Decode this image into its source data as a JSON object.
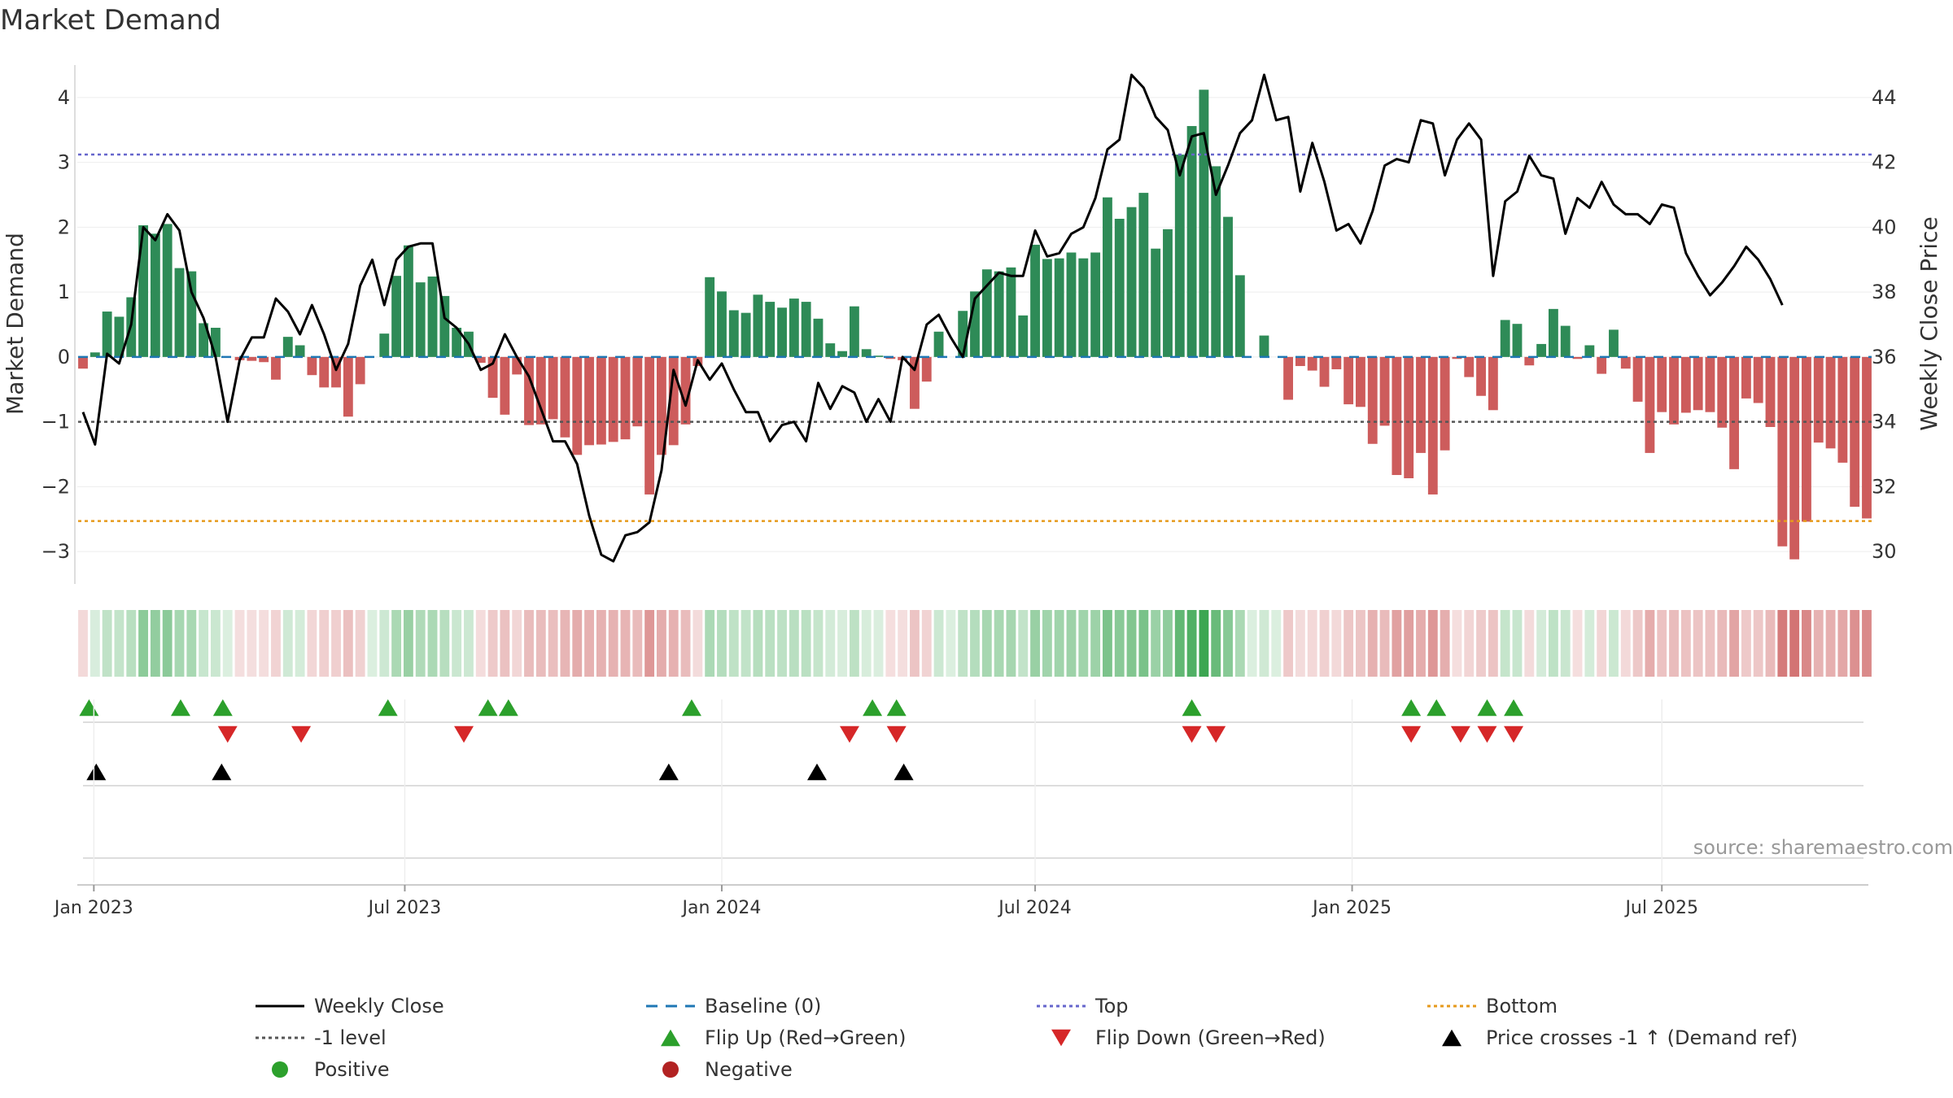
{
  "chart_data": {
    "type": "bar",
    "title": "Market Demand",
    "ylabel_left": "Market Demand",
    "ylabel_right": "Weekly Close Price",
    "source": "source: sharemaestro.com",
    "ylim_left": [
      -3.5,
      4.5
    ],
    "ylim_right": [
      29,
      45
    ],
    "yticks_left": [
      -3,
      -2,
      -1,
      0,
      1,
      2,
      3,
      4
    ],
    "yticks_right": [
      30,
      32,
      34,
      36,
      38,
      40,
      42,
      44
    ],
    "x_start": "2022-12-26",
    "x_end": "2025-09-08",
    "x_ticks": [
      {
        "label": "Jan 2023",
        "week": 0.9
      },
      {
        "label": "Jul 2023",
        "week": 26.7
      },
      {
        "label": "Jan 2024",
        "week": 53.0
      },
      {
        "label": "Jul 2024",
        "week": 79.0
      },
      {
        "label": "Jan 2025",
        "week": 105.3
      },
      {
        "label": "Jul 2025",
        "week": 131.0
      }
    ],
    "reference_lines": {
      "top": 3.12,
      "bottom": -2.53,
      "minus_one": -1,
      "baseline": 0
    },
    "demand": [
      -0.18,
      0.07,
      0.7,
      0.62,
      0.92,
      2.03,
      1.9,
      2.05,
      1.37,
      1.32,
      0.52,
      0.45,
      0.0,
      -0.05,
      -0.06,
      -0.08,
      -0.35,
      0.31,
      0.18,
      -0.28,
      -0.47,
      -0.47,
      -0.92,
      -0.42,
      0.0,
      0.36,
      1.25,
      1.72,
      1.15,
      1.24,
      0.94,
      0.45,
      0.39,
      -0.09,
      -0.63,
      -0.89,
      -0.27,
      -1.05,
      -1.04,
      -0.96,
      -1.24,
      -1.51,
      -1.36,
      -1.35,
      -1.31,
      -1.27,
      -1.07,
      -2.12,
      -1.51,
      -1.36,
      -1.04,
      -0.14,
      1.23,
      1.01,
      0.72,
      0.68,
      0.96,
      0.85,
      0.76,
      0.9,
      0.85,
      0.59,
      0.21,
      0.09,
      0.78,
      0.12,
      0.02,
      -0.03,
      -0.05,
      -0.8,
      -0.38,
      0.39,
      0.0,
      0.71,
      1.01,
      1.35,
      1.32,
      1.38,
      0.64,
      1.73,
      1.51,
      1.52,
      1.61,
      1.52,
      1.61,
      2.46,
      2.13,
      2.31,
      2.53,
      1.67,
      1.97,
      3.12,
      3.56,
      4.12,
      2.94,
      2.16,
      1.26,
      0.0,
      0.33,
      0.0,
      -0.66,
      -0.14,
      -0.21,
      -0.46,
      -0.19,
      -0.73,
      -0.77,
      -1.34,
      -1.06,
      -1.82,
      -1.87,
      -1.48,
      -2.12,
      -1.44,
      -0.03,
      -0.31,
      -0.6,
      -0.82,
      0.57,
      0.51,
      -0.13,
      0.2,
      0.74,
      0.48,
      -0.03,
      0.18,
      -0.26,
      0.42,
      -0.18,
      -0.69,
      -1.48,
      -0.85,
      -1.04,
      -0.86,
      -0.82,
      -0.85,
      -1.09,
      -1.73,
      -0.64,
      -0.71,
      -1.08,
      -2.92,
      -3.12,
      -2.54,
      -1.32,
      -1.41,
      -1.63,
      -2.31,
      -2.49
    ],
    "weekly_close": [
      34.3,
      33.3,
      36.1,
      35.8,
      37.0,
      40.0,
      39.6,
      40.4,
      39.9,
      38.0,
      37.2,
      36.0,
      34.0,
      35.9,
      36.6,
      36.6,
      37.8,
      37.4,
      36.7,
      37.6,
      36.7,
      35.6,
      36.4,
      38.2,
      39.0,
      37.6,
      39.0,
      39.4,
      39.5,
      39.5,
      37.2,
      36.9,
      36.4,
      35.6,
      35.8,
      36.7,
      36.0,
      35.4,
      34.4,
      33.4,
      33.4,
      32.7,
      31.1,
      29.9,
      29.7,
      30.5,
      30.6,
      30.9,
      32.5,
      35.6,
      34.5,
      35.9,
      35.3,
      35.8,
      35.0,
      34.3,
      34.3,
      33.4,
      33.9,
      34.0,
      33.4,
      35.2,
      34.4,
      35.1,
      34.9,
      34.0,
      34.7,
      34.0,
      36.0,
      35.6,
      37.0,
      37.3,
      36.6,
      36.0,
      37.8,
      38.2,
      38.6,
      38.5,
      38.5,
      39.9,
      39.1,
      39.2,
      39.8,
      40.0,
      40.9,
      42.4,
      42.7,
      44.7,
      44.3,
      43.4,
      43.0,
      41.6,
      42.8,
      42.9,
      41.0,
      41.9,
      42.9,
      43.3,
      44.7,
      43.3,
      43.4,
      41.1,
      42.6,
      41.4,
      39.9,
      40.1,
      39.5,
      40.5,
      41.9,
      42.1,
      42.0,
      43.3,
      43.2,
      41.6,
      42.7,
      43.2,
      42.7,
      38.5,
      40.8,
      41.1,
      42.2,
      41.6,
      41.5,
      39.8,
      40.9,
      40.6,
      41.4,
      40.7,
      40.4,
      40.4,
      40.1,
      40.7,
      40.6,
      39.2,
      38.5,
      37.9,
      38.3,
      38.8,
      39.4,
      39.0,
      38.4,
      37.6
    ],
    "markers": {
      "flip_up_weeks": [
        0.5,
        8.1,
        11.6,
        25.3,
        33.6,
        35.3,
        50.5,
        65.5,
        67.5,
        92.0,
        110.2,
        112.3,
        116.5,
        118.7
      ],
      "flip_down_weeks": [
        12.0,
        18.1,
        31.6,
        63.6,
        67.5,
        92.0,
        94.0,
        110.2,
        114.3,
        116.5,
        118.7
      ],
      "price_cross_weeks": [
        1.1,
        11.5,
        48.6,
        60.9,
        68.1
      ]
    },
    "legend": [
      {
        "label": "Weekly Close",
        "kind": "solid-line",
        "color": "#000000"
      },
      {
        "label": "Baseline (0)",
        "kind": "dash-line",
        "color": "#1f77b4"
      },
      {
        "label": "Top",
        "kind": "dot-line",
        "color": "#6666cc"
      },
      {
        "label": "Bottom",
        "kind": "dot-line",
        "color": "#e69a1c"
      },
      {
        "label": "-1 level",
        "kind": "dot-line",
        "color": "#555555"
      },
      {
        "label": "Flip Up (Red→Green)",
        "kind": "triangle-up",
        "color": "#2ca02c"
      },
      {
        "label": "Flip Down (Green→Red)",
        "kind": "triangle-down",
        "color": "#d62728"
      },
      {
        "label": "Price crosses -1 ↑ (Demand ref)",
        "kind": "triangle-up",
        "color": "#000000"
      },
      {
        "label": "Positive",
        "kind": "circle",
        "color": "#2ca02c"
      },
      {
        "label": "Negative",
        "kind": "circle",
        "color": "#b22222"
      }
    ],
    "colors": {
      "positive_bar": "#2e8b57",
      "negative_bar": "#cd5c5c",
      "top_line": "#6666cc",
      "bottom_line": "#e69a1c",
      "minus_one_line": "#555555",
      "baseline": "#1f77b4",
      "price_line": "#000000"
    }
  }
}
